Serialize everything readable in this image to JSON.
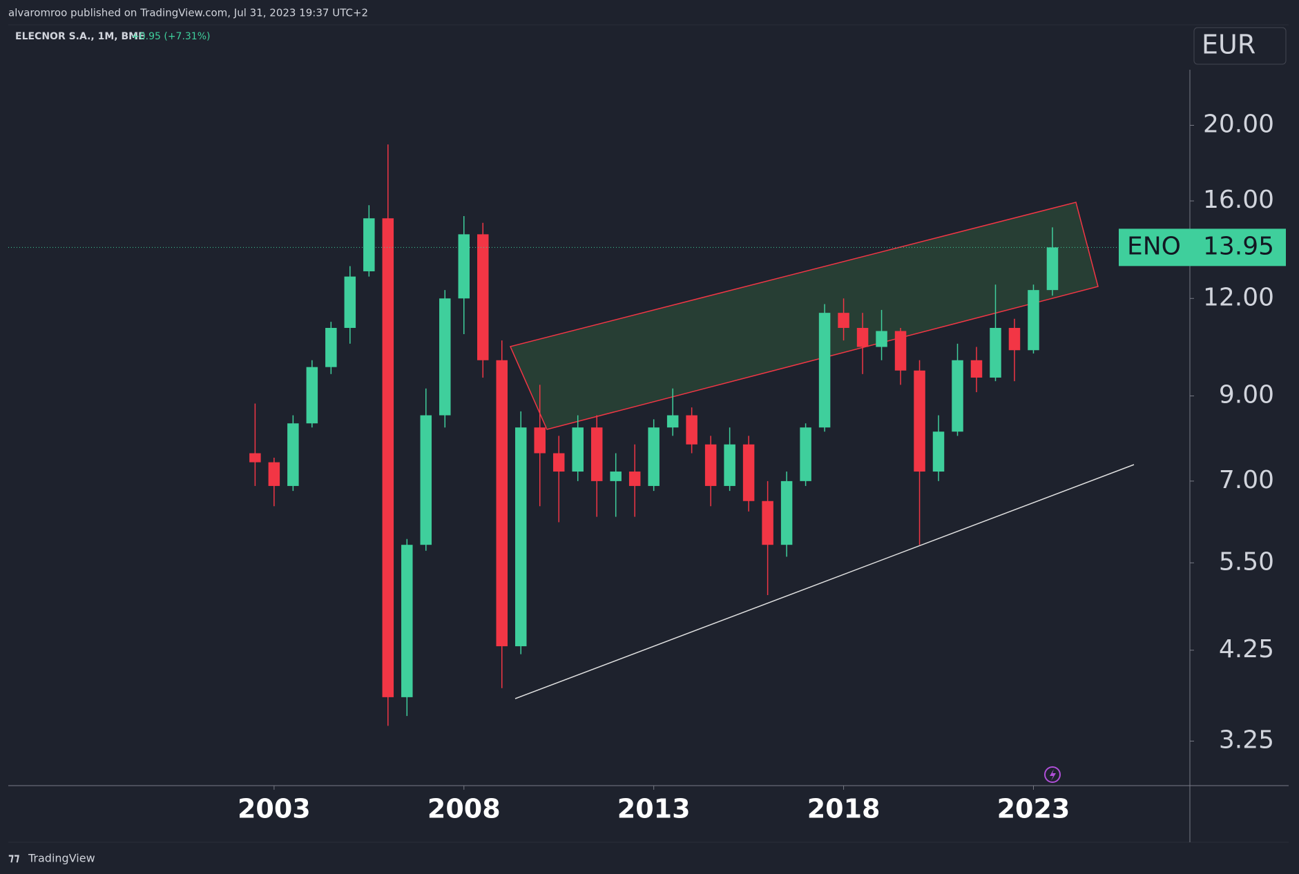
{
  "published": "alvaromroo published on TradingView.com, Jul 31, 2023 19:37 UTC+2",
  "footer": "TradingView",
  "chart_data": {
    "type": "candlestick",
    "title": "ELECNOR S.A., 1M, BME",
    "change": "+0.95 (+7.31%)",
    "currency": "EUR",
    "last_price": {
      "name": "ENO",
      "value": 13.95,
      "label": "13.95"
    },
    "log_scale": true,
    "up_color": "#3fcf9c",
    "down_color": "#f23645",
    "x": [
      2002.5,
      2003,
      2003.5,
      2004,
      2004.5,
      2005,
      2005.5,
      2006,
      2006.5,
      2007,
      2007.5,
      2008,
      2008.5,
      2009,
      2009.5,
      2010,
      2010.5,
      2011,
      2011.5,
      2012,
      2012.5,
      2013,
      2013.5,
      2014,
      2014.5,
      2015,
      2015.5,
      2016,
      2016.5,
      2017,
      2017.5,
      2018,
      2018.5,
      2019,
      2019.5,
      2020,
      2020.5,
      2021,
      2021.5,
      2022,
      2022.5,
      2023,
      2023.5
    ],
    "open": [
      7.6,
      7.4,
      6.9,
      8.3,
      9.8,
      11,
      13,
      15.2,
      3.7,
      5.8,
      8.5,
      12,
      14.5,
      10,
      4.3,
      8.2,
      7.6,
      7.2,
      8.2,
      7,
      7.2,
      6.9,
      8.2,
      8.5,
      7.8,
      6.9,
      7.8,
      6.6,
      5.8,
      7,
      8.2,
      11.5,
      11,
      10.4,
      10.9,
      9.7,
      7.2,
      8.1,
      10,
      9.5,
      11,
      10.3,
      12.3
    ],
    "high": [
      8.8,
      7.5,
      8.5,
      10,
      11.2,
      13.2,
      15.8,
      18.9,
      5.9,
      9.2,
      12.3,
      15.3,
      15,
      10.6,
      8.6,
      9.3,
      8,
      8.5,
      8.5,
      7.6,
      7.8,
      8.4,
      9.2,
      8.7,
      8,
      8.2,
      8,
      7,
      7.2,
      8.3,
      11.8,
      12,
      11.5,
      11.6,
      11,
      10,
      8.5,
      10.5,
      10.4,
      12.5,
      11.3,
      12.5,
      14.8
    ],
    "low": [
      6.9,
      6.5,
      6.8,
      8.2,
      9.6,
      10.5,
      12.8,
      3.4,
      3.5,
      5.7,
      8.2,
      10.8,
      9.5,
      3.8,
      4.2,
      6.5,
      6.2,
      7,
      6.3,
      6.3,
      6.3,
      6.8,
      8,
      7.6,
      6.5,
      6.8,
      6.4,
      5,
      5.6,
      6.9,
      8.1,
      10.6,
      9.6,
      10,
      9.3,
      5.8,
      7,
      8,
      9.1,
      9.4,
      9.4,
      10.2,
      12.1
    ],
    "close": [
      7.4,
      6.9,
      8.3,
      9.8,
      11,
      12.8,
      15.2,
      3.7,
      5.8,
      8.5,
      12,
      14.5,
      10,
      4.3,
      8.2,
      7.6,
      7.2,
      8.2,
      7,
      7.2,
      6.9,
      8.2,
      8.5,
      7.8,
      6.9,
      7.8,
      6.6,
      5.8,
      7,
      8.2,
      11.5,
      11,
      10.4,
      10.9,
      9.7,
      7.2,
      8.1,
      10,
      9.5,
      11,
      10.3,
      12.3,
      13.95
    ],
    "xlim": [
      1996.0,
      2027.12
    ],
    "xticks": [
      2003,
      2008,
      2013,
      2018,
      2023
    ],
    "ylim": [
      2.85,
      26.9
    ],
    "yticks": [
      {
        "value": 3.25,
        "label": "3.25"
      },
      {
        "value": 4.25,
        "label": "4.25"
      },
      {
        "value": 5.5,
        "label": "5.50"
      },
      {
        "value": 7,
        "label": "7.00"
      },
      {
        "value": 9,
        "label": "9.00"
      },
      {
        "value": 12,
        "label": "12.00"
      },
      {
        "value": 16,
        "label": "16.00"
      },
      {
        "value": 20,
        "label": "20.00"
      }
    ]
  }
}
